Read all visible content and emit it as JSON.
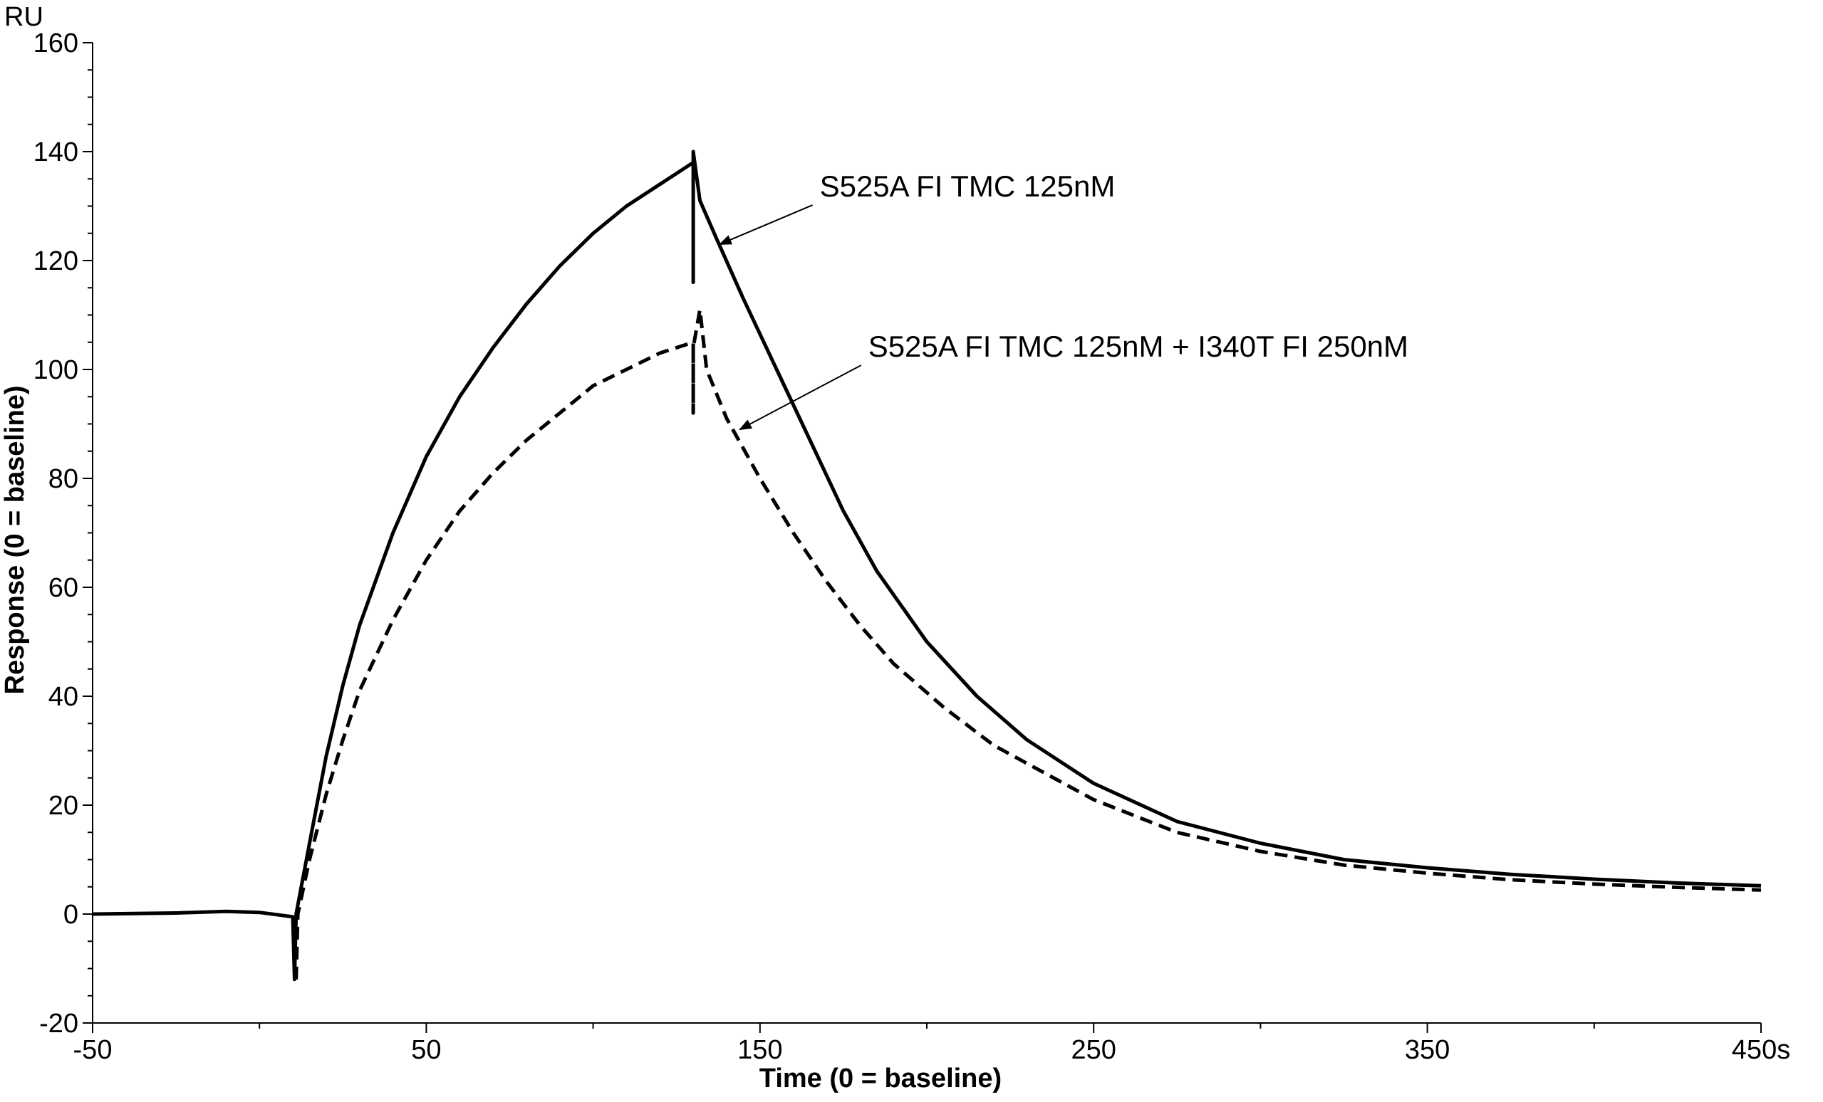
{
  "chart_data": {
    "type": "line",
    "title": "",
    "xlabel": "Time (0 = baseline)",
    "ylabel": "Response (0 = baseline)",
    "y_unit_label": "RU",
    "xlim": [
      -50,
      450
    ],
    "ylim": [
      -20,
      160
    ],
    "x_ticks": [
      -50,
      50,
      150,
      250,
      350,
      450
    ],
    "x_tick_labels": [
      "-50",
      "50",
      "150",
      "250",
      "350",
      "450s"
    ],
    "y_ticks": [
      -20,
      0,
      20,
      40,
      60,
      80,
      100,
      120,
      140,
      160
    ],
    "y_tick_labels": [
      "-20",
      "0",
      "20",
      "40",
      "60",
      "80",
      "100",
      "120",
      "140",
      "160"
    ],
    "grid": false,
    "legend": "none",
    "series": [
      {
        "style": "solid",
        "color": "#000000",
        "points": [
          [
            -50,
            0
          ],
          [
            -25,
            0.2
          ],
          [
            -10,
            0.5
          ],
          [
            0,
            0.3
          ],
          [
            10,
            -0.5
          ],
          [
            10.5,
            -12
          ],
          [
            11,
            0
          ],
          [
            15,
            13
          ],
          [
            20,
            29
          ],
          [
            25,
            42
          ],
          [
            30,
            53
          ],
          [
            40,
            70
          ],
          [
            50,
            84
          ],
          [
            60,
            95
          ],
          [
            70,
            104
          ],
          [
            80,
            112
          ],
          [
            90,
            119
          ],
          [
            100,
            125
          ],
          [
            110,
            130
          ],
          [
            120,
            134
          ],
          [
            130,
            138
          ],
          [
            130,
            116
          ],
          [
            130,
            140
          ],
          [
            132,
            131
          ],
          [
            137,
            124
          ],
          [
            145,
            113
          ],
          [
            155,
            100
          ],
          [
            165,
            87
          ],
          [
            175,
            74
          ],
          [
            185,
            63
          ],
          [
            200,
            50
          ],
          [
            215,
            40
          ],
          [
            230,
            32
          ],
          [
            250,
            24
          ],
          [
            275,
            17
          ],
          [
            300,
            13
          ],
          [
            325,
            10
          ],
          [
            350,
            8.5
          ],
          [
            375,
            7.3
          ],
          [
            400,
            6.4
          ],
          [
            425,
            5.7
          ],
          [
            450,
            5.2
          ]
        ],
        "annotation": "S525A FI TMC 125nM",
        "annotation_point": [
          138,
          123
        ]
      },
      {
        "style": "dashed",
        "color": "#000000",
        "points": [
          [
            11,
            -12
          ],
          [
            11.5,
            0
          ],
          [
            15,
            10
          ],
          [
            20,
            22
          ],
          [
            25,
            32
          ],
          [
            30,
            41
          ],
          [
            40,
            54
          ],
          [
            50,
            65
          ],
          [
            60,
            74
          ],
          [
            70,
            81
          ],
          [
            80,
            87
          ],
          [
            90,
            92
          ],
          [
            100,
            97
          ],
          [
            110,
            100
          ],
          [
            120,
            103
          ],
          [
            130,
            105
          ],
          [
            130,
            92
          ],
          [
            130,
            104
          ],
          [
            132,
            111
          ],
          [
            134,
            100
          ],
          [
            140,
            91
          ],
          [
            150,
            80
          ],
          [
            160,
            70
          ],
          [
            170,
            61
          ],
          [
            180,
            53
          ],
          [
            190,
            46
          ],
          [
            205,
            38
          ],
          [
            220,
            31
          ],
          [
            235,
            26
          ],
          [
            250,
            21
          ],
          [
            275,
            15
          ],
          [
            300,
            11.5
          ],
          [
            325,
            9
          ],
          [
            350,
            7.5
          ],
          [
            375,
            6.3
          ],
          [
            400,
            5.5
          ],
          [
            425,
            4.9
          ],
          [
            450,
            4.4
          ]
        ],
        "annotation": "S525A FI TMC 125nM + I340T FI 250nM",
        "annotation_point": [
          144,
          89
        ]
      }
    ]
  }
}
